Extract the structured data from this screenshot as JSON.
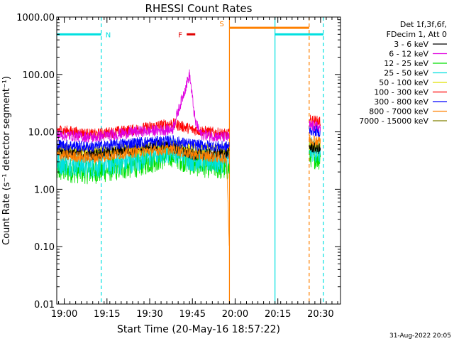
{
  "chart_data": {
    "type": "line",
    "title": "RHESSI Count Rates",
    "xlabel": "Start Time (20-May-16 18:57:22)",
    "ylabel": "Count Rate (s⁻¹ detector segment⁻¹)",
    "y_scale": "log",
    "ylim": [
      0.01,
      1000
    ],
    "xlim": [
      "18:57:22",
      "20:37:00"
    ],
    "grid": false,
    "x_ticks": [
      "19:00",
      "19:15",
      "19:30",
      "19:45",
      "20:00",
      "20:15",
      "20:30"
    ],
    "y_ticks": [
      "0.01",
      "0.10",
      "1.00",
      "10.00",
      "100.00",
      "1000.00"
    ],
    "legend_position": "top-right",
    "legend_header": [
      "Det 1f,3f,6f,",
      "FDecim 1, Att 0"
    ],
    "series": [
      {
        "name": "3 - 6 keV",
        "color": "#000000",
        "points": [
          [
            "18:57",
            "4.5"
          ],
          [
            "19:10",
            "4.0"
          ],
          [
            "19:25",
            "5.0"
          ],
          [
            "19:35",
            "6.0"
          ],
          [
            "19:45",
            "4.0"
          ],
          [
            "19:57",
            "4.2"
          ],
          [
            "20:26",
            "5.5"
          ],
          [
            "20:30",
            "5.0"
          ]
        ]
      },
      {
        "name": "6 - 12 keV",
        "color": "#e000e0",
        "points": [
          [
            "18:57",
            "9.0"
          ],
          [
            "19:10",
            "8.0"
          ],
          [
            "19:25",
            "10.0"
          ],
          [
            "19:38",
            "11.0"
          ],
          [
            "19:44",
            "100"
          ],
          [
            "19:46",
            "15"
          ],
          [
            "19:48",
            "9.0"
          ],
          [
            "19:57",
            "8.0"
          ],
          [
            "20:26",
            "13.0"
          ],
          [
            "20:30",
            "12.0"
          ]
        ]
      },
      {
        "name": "12 - 25 keV",
        "color": "#00e000",
        "points": [
          [
            "18:57",
            "2.2"
          ],
          [
            "19:10",
            "2.0"
          ],
          [
            "19:25",
            "2.6"
          ],
          [
            "19:38",
            "4.0"
          ],
          [
            "19:45",
            "2.8"
          ],
          [
            "19:57",
            "2.3"
          ],
          [
            "20:26",
            "4.0"
          ],
          [
            "20:30",
            "3.5"
          ]
        ]
      },
      {
        "name": "25 - 50 keV",
        "color": "#00e0e0",
        "points": [
          [
            "18:57",
            "3.0"
          ],
          [
            "19:10",
            "2.5"
          ],
          [
            "19:25",
            "3.2"
          ],
          [
            "19:38",
            "5.0"
          ],
          [
            "19:45",
            "3.3"
          ],
          [
            "19:57",
            "3.0"
          ],
          [
            "20:26",
            "5.0"
          ],
          [
            "20:30",
            "4.5"
          ]
        ]
      },
      {
        "name": "50 - 100 keV",
        "color": "#e0e000",
        "points": [
          [
            "18:57",
            "5.0"
          ],
          [
            "19:10",
            "4.5"
          ],
          [
            "19:25",
            "5.0"
          ],
          [
            "19:38",
            "6.0"
          ],
          [
            "19:45",
            "5.0"
          ],
          [
            "19:57",
            "5.0"
          ],
          [
            "20:26",
            "6.0"
          ],
          [
            "20:30",
            "5.5"
          ]
        ]
      },
      {
        "name": "100 - 300 keV",
        "color": "#ff0000",
        "points": [
          [
            "18:57",
            "11.0"
          ],
          [
            "19:10",
            "9.0"
          ],
          [
            "19:25",
            "11.0"
          ],
          [
            "19:38",
            "14.0"
          ],
          [
            "19:45",
            "11.0"
          ],
          [
            "19:57",
            "9.0"
          ],
          [
            "20:26",
            "16.0"
          ],
          [
            "20:30",
            "15.0"
          ]
        ]
      },
      {
        "name": "300 - 800 keV",
        "color": "#0000ff",
        "points": [
          [
            "18:57",
            "6.0"
          ],
          [
            "19:10",
            "5.5"
          ],
          [
            "19:25",
            "6.5"
          ],
          [
            "19:38",
            "7.0"
          ],
          [
            "19:45",
            "6.0"
          ],
          [
            "19:57",
            "5.5"
          ],
          [
            "20:26",
            "11.0"
          ],
          [
            "20:30",
            "10.0"
          ]
        ]
      },
      {
        "name": "800 - 7000 keV",
        "color": "#ff8000",
        "points": [
          [
            "18:57",
            "4.0"
          ],
          [
            "19:10",
            "3.5"
          ],
          [
            "19:25",
            "4.5"
          ],
          [
            "19:38",
            "5.0"
          ],
          [
            "19:45",
            "4.0"
          ],
          [
            "19:57",
            "3.5"
          ],
          [
            "19:58",
            "0.08"
          ],
          [
            "20:26",
            "7.5"
          ],
          [
            "20:30",
            "7.0"
          ]
        ]
      },
      {
        "name": "7000 - 15000 keV",
        "color": "#808000",
        "points": []
      }
    ],
    "annotations": [
      {
        "label": "N",
        "color": "#00e0e0",
        "start": "18:57",
        "end": "19:13",
        "y": "500"
      },
      {
        "label": "F",
        "color": "#e00000",
        "start": "19:43",
        "end": "19:46",
        "y": "500"
      },
      {
        "label": "S",
        "color": "#ff8000",
        "start": "19:58",
        "end": "20:26",
        "y": "650"
      },
      {
        "label": "",
        "color": "#00e0e0",
        "start": "20:14",
        "end": "20:31",
        "y": "500"
      }
    ],
    "vlines": [
      {
        "time": "18:57",
        "color": "#00e0e0",
        "style": "solid"
      },
      {
        "time": "19:13",
        "color": "#00e0e0",
        "style": "dashed"
      },
      {
        "time": "19:58",
        "color": "#ff8000",
        "style": "solid"
      },
      {
        "time": "20:14",
        "color": "#00e0e0",
        "style": "solid"
      },
      {
        "time": "20:26",
        "color": "#ff8000",
        "style": "dashed"
      },
      {
        "time": "20:31",
        "color": "#00e0e0",
        "style": "dashed"
      }
    ],
    "data_gap": [
      "19:58",
      "20:26"
    ]
  },
  "footer_timestamp": "31-Aug-2022 20:05"
}
